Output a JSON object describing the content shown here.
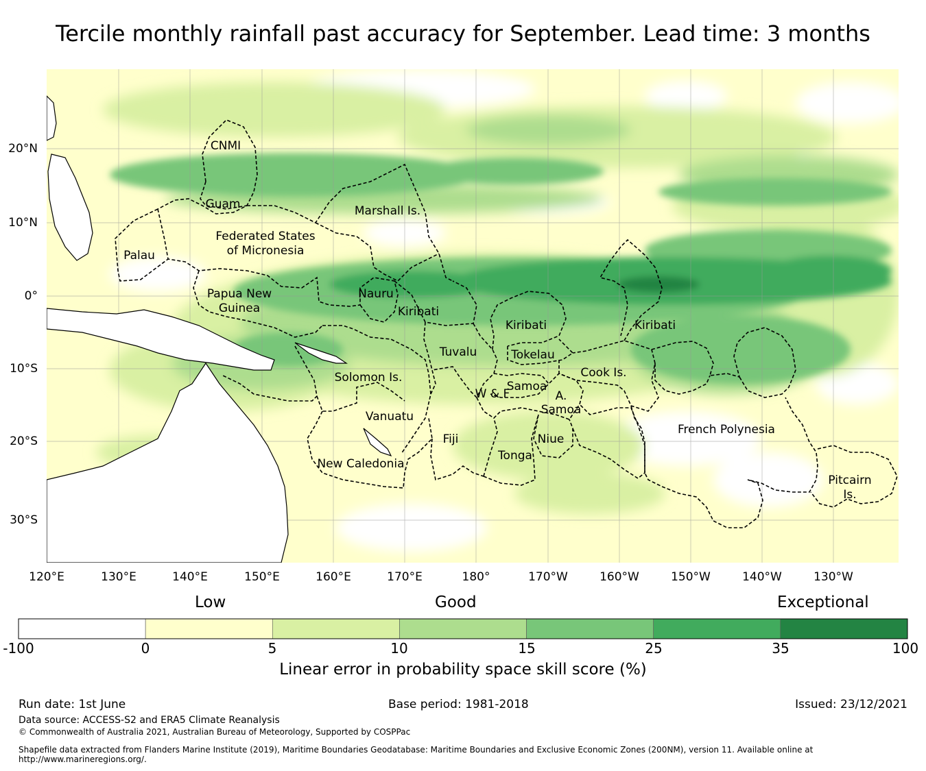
{
  "title": "Tercile monthly rainfall past accuracy for September. Lead time: 3 months",
  "map": {
    "lat_ticks": [
      "20°N",
      "10°N",
      "0°",
      "10°S",
      "20°S",
      "30°S"
    ],
    "lon_ticks": [
      "120°E",
      "130°E",
      "140°E",
      "150°E",
      "160°E",
      "170°E",
      "180°",
      "170°W",
      "160°W",
      "150°W",
      "140°W",
      "130°W"
    ],
    "regions": [
      {
        "name": "CNMI"
      },
      {
        "name": "Guam"
      },
      {
        "name": "Marshall Is."
      },
      {
        "name": "Federated States"
      },
      {
        "name": "of Micronesia"
      },
      {
        "name": "Palau"
      },
      {
        "name": "Papua New"
      },
      {
        "name": "Guinea"
      },
      {
        "name": "Nauru"
      },
      {
        "name": "Kiribati"
      },
      {
        "name": "Kiribati"
      },
      {
        "name": "Kiribati"
      },
      {
        "name": "Tuvalu"
      },
      {
        "name": "Tokelau"
      },
      {
        "name": "Cook Is."
      },
      {
        "name": "Solomon Is."
      },
      {
        "name": "Samoa"
      },
      {
        "name": "W & F"
      },
      {
        "name": "A."
      },
      {
        "name": "Samoa"
      },
      {
        "name": "Vanuatu"
      },
      {
        "name": "Fiji"
      },
      {
        "name": "Niue"
      },
      {
        "name": "French Polynesia"
      },
      {
        "name": "Tonga"
      },
      {
        "name": "New Caledonia"
      },
      {
        "name": "Pitcairn"
      },
      {
        "name": "Is."
      }
    ],
    "skill_bands": [
      {
        "lat": 18,
        "lon": 170,
        "level": "10-15"
      },
      {
        "lat": 14,
        "lon": 150,
        "level": "15-25"
      },
      {
        "lat": 3,
        "lon": 200,
        "level": "25-35"
      },
      {
        "lat": 0,
        "lon": 175,
        "level": "15-25"
      },
      {
        "lat": 1,
        "lon": 203,
        "level": "35-100"
      },
      {
        "lat": -8,
        "lon": 215,
        "level": "15-25"
      }
    ]
  },
  "colorbar": {
    "words": [
      "Low",
      "Good",
      "Exceptional"
    ],
    "ticks": [
      "-100",
      "0",
      "5",
      "10",
      "15",
      "25",
      "35",
      "100"
    ],
    "colors": [
      "#ffffff",
      "#ffffcc",
      "#d9f0a3",
      "#addd8e",
      "#78c679",
      "#41ab5d",
      "#238443"
    ],
    "label": "Linear error in probability space skill score (%)"
  },
  "footer": {
    "run_date": "Run date: 1st June",
    "base_period": "Base period: 1981-2018",
    "issued": "Issued: 23/12/2021",
    "data_source": "Data source: ACCESS-S2 and ERA5 Climate Reanalysis",
    "copyright": "© Commonwealth of Australia 2021, Australian Bureau of Meteorology, Supported by COSPPac",
    "shapefile": "Shapefile data extracted from Flanders Marine Institute (2019), Maritime Boundaries Geodatabase: Maritime Boundaries and Exclusive Economic Zones (200NM), version 11. Available online at http://www.marineregions.org/."
  }
}
